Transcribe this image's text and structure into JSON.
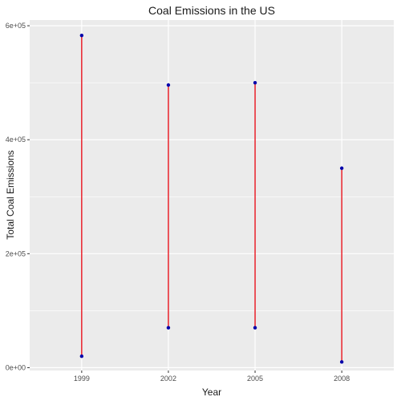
{
  "chart_data": {
    "type": "line",
    "title": "Coal Emissions in the US",
    "xlabel": "Year",
    "ylabel": "Total Coal Emissions",
    "categories": [
      "1999",
      "2002",
      "2005",
      "2008"
    ],
    "segments": [
      {
        "x": "1999",
        "low": 20000,
        "high": 583000
      },
      {
        "x": "2002",
        "low": 70000,
        "high": 496000
      },
      {
        "x": "2005",
        "low": 70000,
        "high": 500000
      },
      {
        "x": "2008",
        "low": 10000,
        "high": 350000
      }
    ],
    "yticks": [
      {
        "value": 0,
        "label": "0e+00"
      },
      {
        "value": 200000,
        "label": "2e+05"
      },
      {
        "value": 400000,
        "label": "4e+05"
      },
      {
        "value": 600000,
        "label": "6e+05"
      }
    ],
    "ylim": [
      -5000,
      610000
    ],
    "grid": true,
    "colors": {
      "panel": "#ebebeb",
      "grid": "#ffffff",
      "line": "#e8000b",
      "point": "#0000aa",
      "text": "#1a1a1a",
      "tick": "#4d4d4d"
    }
  }
}
